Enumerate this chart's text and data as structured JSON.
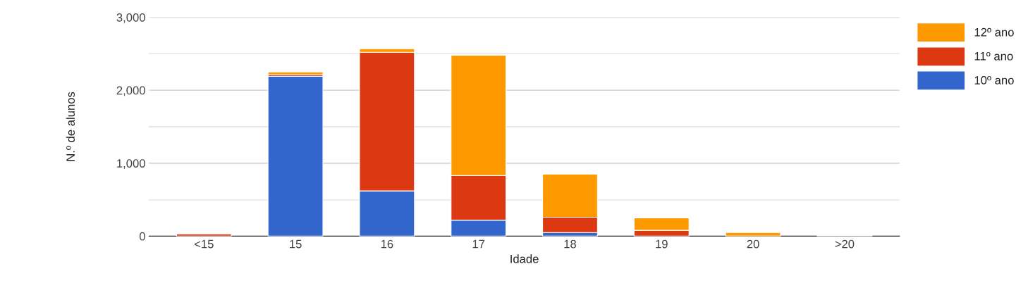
{
  "chart_data": {
    "type": "bar",
    "stacked": true,
    "xlabel": "Idade",
    "ylabel": "N.º de alunos",
    "categories": [
      "<15",
      "15",
      "16",
      "17",
      "18",
      "19",
      "20",
      ">20"
    ],
    "series": [
      {
        "name": "10º ano",
        "color": "#3366cc",
        "values": [
          null,
          2190,
          620,
          220,
          50,
          null,
          null,
          null
        ]
      },
      {
        "name": "11º ano",
        "color": "#dc3912",
        "values": [
          30,
          20,
          1900,
          610,
          210,
          80,
          null,
          10
        ]
      },
      {
        "name": "12º ano",
        "color": "#ff9900",
        "values": [
          null,
          40,
          50,
          1650,
          590,
          170,
          50,
          null
        ]
      }
    ],
    "ylim": [
      0,
      3000
    ],
    "yticks": [
      {
        "value": 0,
        "label": "0"
      },
      {
        "value": 500,
        "label": null
      },
      {
        "value": 1000,
        "label": "1,000"
      },
      {
        "value": 1500,
        "label": null
      },
      {
        "value": 2000,
        "label": "2,000"
      },
      {
        "value": 2500,
        "label": null
      },
      {
        "value": 3000,
        "label": "3,000"
      }
    ],
    "grid": "y",
    "legend": "top right"
  }
}
